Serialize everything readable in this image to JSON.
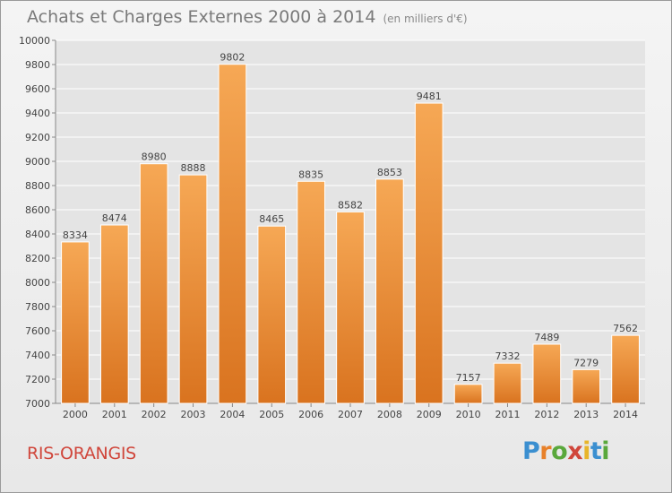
{
  "header": {
    "title": "Achats et Charges Externes 2000 à 2014",
    "subtitle": "(en milliers d'€)"
  },
  "footer": {
    "commune": "RIS-ORANGIS",
    "logo_text": "Proxiti",
    "logo_colors": [
      "#3b8fd0",
      "#e8812a",
      "#5aa83c",
      "#d0463b",
      "#e8b52a",
      "#3b8fd0",
      "#5aa83c"
    ]
  },
  "colors": {
    "bar_top": "#f6a855",
    "bar_bottom": "#d9731f",
    "grid": "#ffffff",
    "text": "#444444"
  },
  "chart_data": {
    "type": "bar",
    "title": "Achats et Charges Externes 2000 à 2014",
    "subtitle": "(en milliers d'€)",
    "categories": [
      "2000",
      "2001",
      "2002",
      "2003",
      "2004",
      "2005",
      "2006",
      "2007",
      "2008",
      "2009",
      "2010",
      "2011",
      "2012",
      "2013",
      "2014"
    ],
    "values": [
      8334,
      8474,
      8980,
      8888,
      9802,
      8465,
      8835,
      8582,
      8853,
      9481,
      7157,
      7332,
      7489,
      7279,
      7562
    ],
    "ylim": [
      7000,
      10000
    ],
    "yticks": [
      7000,
      7200,
      7400,
      7600,
      7800,
      8000,
      8200,
      8400,
      8600,
      8800,
      9000,
      9200,
      9400,
      9600,
      9800,
      10000
    ],
    "grid": true
  }
}
